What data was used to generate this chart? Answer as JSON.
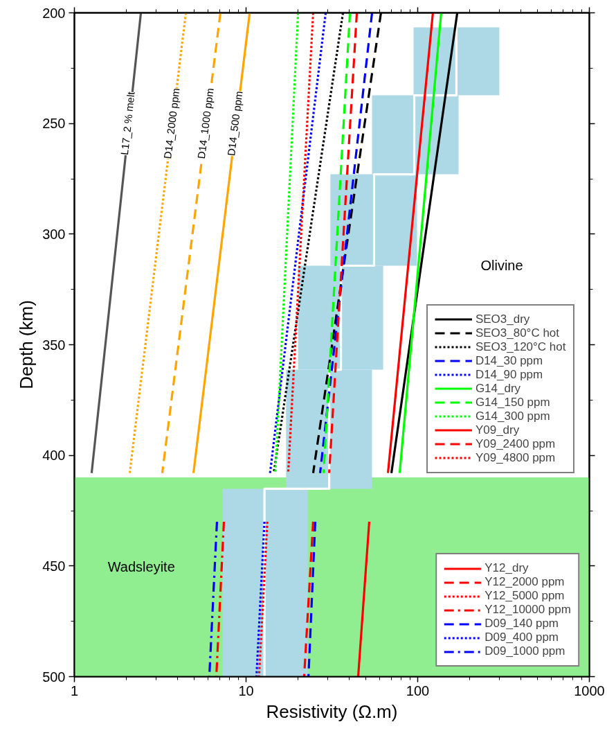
{
  "chart_data": {
    "type": "line",
    "xlabel": "Resistivity (Ω.m)",
    "ylabel": "Depth (km)",
    "log": "x",
    "legend": "right",
    "xlim": [
      1,
      1000
    ],
    "xticks": [
      1,
      10,
      100,
      1000
    ],
    "ylim": [
      500,
      200
    ],
    "yticks": [
      200,
      250,
      300,
      350,
      400,
      450,
      500
    ],
    "bands": [
      {
        "axis": "y",
        "from": 410,
        "to": 500,
        "color": "#90ee90",
        "label": "Wadsleyite"
      }
    ],
    "annotations": [
      "Olivine",
      {
        "text": "L17_2 % melt",
        "x": 2.04,
        "y": 250
      },
      {
        "text": "D14_2000 ppm",
        "x": 3.68,
        "y": 250
      },
      {
        "text": "D14_1000 ppm",
        "x": 5.8,
        "y": 250
      },
      {
        "text": "D14_500 ppm",
        "x": 8.6,
        "y": 250
      }
    ],
    "series": [
      {
        "type": "area",
        "color": "#add8e6",
        "x": [
          94.6,
          299,
          299,
          94.6,
          94.6
        ],
        "values": [
          206.6,
          206.6,
          237.3,
          237.3,
          206.6
        ]
      },
      {
        "type": "area",
        "color": "#add8e6",
        "x": [
          54.2,
          173,
          173,
          54.2,
          54.2
        ],
        "values": [
          237.3,
          237.3,
          273,
          273,
          237.3
        ]
      },
      {
        "type": "area",
        "color": "#add8e6",
        "x": [
          31,
          99.1,
          99.1,
          31,
          31
        ],
        "values": [
          273,
          273,
          314.3,
          314.3,
          273
        ]
      },
      {
        "type": "area",
        "color": "#add8e6",
        "x": [
          20.1,
          62.9,
          62.9,
          20.1,
          20.1
        ],
        "values": [
          314.3,
          314.3,
          361.3,
          361.3,
          314.3
        ]
      },
      {
        "type": "area",
        "color": "#add8e6",
        "x": [
          17.1,
          54.2,
          54.2,
          17.1,
          17.1
        ],
        "values": [
          361.3,
          361.3,
          415.1,
          415.1,
          361.3
        ]
      },
      {
        "type": "area",
        "color": "#add8e6",
        "x": [
          7.29,
          22.9,
          22.9,
          7.29,
          7.29
        ],
        "values": [
          415.1,
          415.1,
          500,
          500,
          415.1
        ]
      },
      {
        "type": "line",
        "color": "#ffffff",
        "line_style": "solid",
        "x": [
          168,
          168,
          95.5,
          95.5,
          55.7,
          55.7,
          35.7,
          35.7,
          30.5,
          30.5,
          12.8,
          12.8
        ],
        "values": [
          206.6,
          237.3,
          237.3,
          273,
          273,
          314.3,
          314.3,
          361.3,
          361.3,
          415.1,
          415.1,
          500
        ]
      },
      {
        "color": "#555555",
        "line_style": "solid",
        "x": [
          2.44,
          1.26
        ],
        "values": [
          200,
          408
        ]
      },
      {
        "color": "#ffa500",
        "line_style": "dotted",
        "x": [
          4.46,
          2.1
        ],
        "values": [
          200,
          408
        ]
      },
      {
        "color": "#ffa500",
        "line_style": "dashed",
        "x": [
          7.09,
          3.25
        ],
        "values": [
          200,
          408
        ]
      },
      {
        "color": "#ffa500",
        "line_style": "solid",
        "x": [
          10.5,
          4.94
        ],
        "values": [
          200,
          408
        ]
      },
      {
        "name": "SEO3_dry",
        "color": "#000000",
        "line_style": "solid",
        "x": [
          170,
          70.3
        ],
        "values": [
          200,
          408
        ]
      },
      {
        "name": "SEO3_80°C hot",
        "color": "#000000",
        "line_style": "dashed",
        "x": [
          61.1,
          24.6
        ],
        "values": [
          200,
          408
        ]
      },
      {
        "name": "SEO3_120°C hot",
        "color": "#000000",
        "line_style": "dotted",
        "x": [
          36.7,
          14.5
        ],
        "values": [
          200,
          408
        ]
      },
      {
        "name": "D14_30 ppm",
        "color": "#0000ff",
        "line_style": "dashed",
        "x": [
          54.2,
          27
        ],
        "values": [
          200,
          408
        ]
      },
      {
        "name": "D14_90 ppm",
        "color": "#0000ff",
        "line_style": "dotted",
        "x": [
          29.1,
          13.8
        ],
        "values": [
          200,
          408
        ]
      },
      {
        "name": "G14_dry",
        "color": "#00ff00",
        "line_style": "solid",
        "x": [
          137,
          78.5
        ],
        "values": [
          200,
          408
        ]
      },
      {
        "name": "G14_150 ppm",
        "color": "#00ff00",
        "line_style": "dashed",
        "x": [
          40.3,
          28.3
        ],
        "values": [
          200,
          408
        ]
      },
      {
        "name": "G14_300 ppm",
        "color": "#00ff00",
        "line_style": "dotted",
        "x": [
          20.1,
          14.8
        ],
        "values": [
          200,
          408
        ]
      },
      {
        "name": "Y09_dry",
        "color": "#ff0000",
        "line_style": "solid",
        "x": [
          122.6,
          67.1
        ],
        "values": [
          200,
          408
        ]
      },
      {
        "name": "Y09_2400 ppm",
        "color": "#ff0000",
        "line_style": "dashed",
        "x": [
          44.2,
          30.5
        ],
        "values": [
          200,
          408
        ]
      },
      {
        "name": "Y09_4800 ppm",
        "color": "#ff0000",
        "line_style": "dotted",
        "x": [
          24.6,
          17.6
        ],
        "values": [
          200,
          408
        ]
      },
      {
        "name": "Y12_dry",
        "color": "#ff0000",
        "line_style": "solid",
        "x": [
          52.2,
          45
        ],
        "values": [
          430,
          500
        ]
      },
      {
        "name": "Y12_2000 ppm",
        "color": "#ff0000",
        "line_style": "dashed",
        "x": [
          24.6,
          21.8
        ],
        "values": [
          430,
          500
        ]
      },
      {
        "name": "Y12_5000 ppm",
        "color": "#ff0000",
        "line_style": "dotted",
        "x": [
          13.3,
          11.9
        ],
        "values": [
          430,
          500
        ]
      },
      {
        "name": "Y12_10000 ppm",
        "color": "#ff0000",
        "line_style": "dashdot",
        "x": [
          7.43,
          6.71
        ],
        "values": [
          430,
          500
        ]
      },
      {
        "name": "D09_140 ppm",
        "color": "#0000ff",
        "line_style": "dashed",
        "x": [
          25.3,
          23.1
        ],
        "values": [
          430,
          500
        ]
      },
      {
        "name": "D09_400 ppm",
        "color": "#0000ff",
        "line_style": "dotted",
        "x": [
          12.8,
          11.5
        ],
        "values": [
          430,
          500
        ]
      },
      {
        "name": "D09_1000 ppm",
        "color": "#0000ff",
        "line_style": "dashdot",
        "x": [
          6.77,
          6.11
        ],
        "values": [
          430,
          500
        ]
      }
    ]
  }
}
